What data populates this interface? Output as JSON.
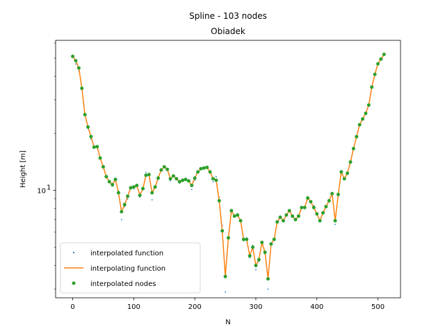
{
  "chart_data": {
    "type": "line",
    "title": "Spline - 103 nodes",
    "subtitle": "Obiadek",
    "xlabel": "N",
    "ylabel": "Height [m]",
    "xlim": [
      -28,
      537
    ],
    "ylim": [
      2.7,
      62
    ],
    "yscale": "log",
    "x_ticks": [
      0,
      100,
      200,
      300,
      400,
      500
    ],
    "y_major_ticks": [
      {
        "value": 10,
        "label": "10",
        "base": "10",
        "exp": "1"
      }
    ],
    "y_minor_ticks": [
      3,
      4,
      5,
      6,
      7,
      8,
      9,
      20,
      30,
      40,
      50,
      60
    ],
    "legend_position": "lower-left",
    "grid": false,
    "series": [
      {
        "name": "interpolated function",
        "kind": "dots",
        "color": "#1f77b4",
        "x": [
          0,
          5,
          10,
          15,
          20,
          25,
          30,
          35,
          40,
          45,
          50,
          55,
          60,
          65,
          70,
          75,
          80,
          85,
          90,
          95,
          100,
          105,
          110,
          115,
          120,
          125,
          130,
          135,
          140,
          145,
          150,
          155,
          160,
          165,
          170,
          175,
          180,
          185,
          190,
          195,
          200,
          205,
          210,
          215,
          220,
          225,
          230,
          235,
          240,
          245,
          250,
          255,
          260,
          265,
          270,
          275,
          280,
          285,
          290,
          295,
          300,
          305,
          310,
          315,
          320,
          325,
          330,
          335,
          340,
          345,
          350,
          355,
          360,
          365,
          370,
          375,
          380,
          385,
          390,
          395,
          400,
          405,
          410,
          415,
          420,
          425,
          430,
          435,
          440,
          445,
          450,
          455,
          460,
          465,
          470,
          475,
          480,
          485,
          490,
          495,
          500,
          505,
          510
        ],
        "y": [
          50.8,
          46.5,
          42.8,
          34.2,
          25.4,
          21.2,
          18.7,
          16.7,
          16.9,
          14.6,
          13.5,
          11.8,
          11.1,
          10.5,
          11.6,
          9.9,
          7.0,
          8.2,
          9.0,
          10.4,
          10.2,
          10.6,
          9.2,
          10.1,
          12.4,
          12.1,
          8.9,
          10.3,
          11.4,
          12.7,
          13.2,
          12.8,
          11.2,
          11.9,
          11.6,
          10.9,
          11.1,
          11.6,
          11.3,
          10.1,
          11.3,
          12.4,
          12.9,
          13.0,
          13.4,
          12.6,
          11.1,
          11.8,
          9.2,
          6.5,
          2.9,
          5.7,
          7.9,
          7.2,
          7.5,
          7.0,
          5.4,
          5.6,
          4.4,
          5.1,
          3.8,
          4.2,
          5.3,
          4.6,
          3.0,
          5.2,
          5.6,
          6.8,
          7.3,
          6.9,
          7.5,
          7.8,
          7.2,
          6.9,
          7.4,
          8.1,
          8.0,
          9.2,
          8.6,
          8.3,
          7.6,
          6.9,
          7.7,
          8.3,
          8.8,
          9.7,
          6.6,
          9.4,
          12.7,
          11.4,
          12.4,
          14.2,
          16.7,
          19.2,
          22.4,
          24.1,
          25.4,
          27.9,
          35.1,
          41.1,
          46.8,
          49.3,
          52.1
        ]
      },
      {
        "name": "interpolating function",
        "kind": "line",
        "color": "#ff7f0e",
        "x": [
          0,
          5,
          10,
          15,
          20,
          25,
          30,
          35,
          40,
          45,
          50,
          55,
          60,
          65,
          70,
          75,
          80,
          85,
          90,
          95,
          100,
          105,
          110,
          115,
          120,
          125,
          130,
          135,
          140,
          145,
          150,
          155,
          160,
          165,
          170,
          175,
          180,
          185,
          190,
          195,
          200,
          205,
          210,
          215,
          220,
          225,
          230,
          235,
          240,
          245,
          250,
          255,
          260,
          265,
          270,
          275,
          280,
          285,
          290,
          295,
          300,
          305,
          310,
          315,
          320,
          325,
          330,
          335,
          340,
          345,
          350,
          355,
          360,
          365,
          370,
          375,
          380,
          385,
          390,
          395,
          400,
          405,
          410,
          415,
          420,
          425,
          430,
          435,
          440,
          445,
          450,
          455,
          460,
          465,
          470,
          475,
          480,
          485,
          490,
          495,
          500,
          505,
          510
        ],
        "y": [
          51.0,
          48.4,
          44.3,
          34.6,
          25.1,
          21.6,
          19.2,
          16.9,
          17.0,
          14.8,
          13.3,
          11.8,
          11.1,
          10.7,
          11.4,
          9.7,
          7.7,
          8.4,
          9.3,
          10.3,
          10.4,
          10.6,
          9.4,
          10.2,
          12.0,
          12.1,
          9.7,
          10.4,
          11.6,
          12.8,
          13.3,
          12.9,
          11.5,
          11.9,
          11.5,
          11.1,
          11.3,
          11.4,
          11.2,
          10.6,
          11.6,
          12.5,
          13.0,
          13.1,
          13.2,
          12.5,
          11.5,
          11.3,
          8.8,
          6.1,
          3.5,
          5.6,
          7.8,
          7.3,
          7.4,
          6.9,
          5.5,
          5.5,
          4.5,
          5.0,
          4.0,
          4.3,
          5.3,
          4.7,
          3.4,
          5.2,
          5.5,
          6.8,
          7.2,
          6.9,
          7.4,
          7.8,
          7.3,
          7.0,
          7.3,
          8.1,
          8.1,
          9.1,
          8.7,
          8.1,
          7.5,
          6.9,
          7.6,
          8.2,
          8.8,
          9.6,
          6.9,
          9.5,
          12.5,
          11.5,
          12.3,
          14.1,
          16.6,
          19.2,
          22.2,
          23.8,
          25.5,
          28.2,
          35.1,
          41.0,
          46.6,
          49.4,
          52.3
        ]
      },
      {
        "name": "interpolated nodes",
        "kind": "markers",
        "color": "#2ca02c",
        "x": [
          0,
          5,
          10,
          15,
          20,
          25,
          30,
          35,
          40,
          45,
          50,
          55,
          60,
          65,
          70,
          75,
          80,
          85,
          90,
          95,
          100,
          105,
          110,
          115,
          120,
          125,
          130,
          135,
          140,
          145,
          150,
          155,
          160,
          165,
          170,
          175,
          180,
          185,
          190,
          195,
          200,
          205,
          210,
          215,
          220,
          225,
          230,
          235,
          240,
          245,
          250,
          255,
          260,
          265,
          270,
          275,
          280,
          285,
          290,
          295,
          300,
          305,
          310,
          315,
          320,
          325,
          330,
          335,
          340,
          345,
          350,
          355,
          360,
          365,
          370,
          375,
          380,
          385,
          390,
          395,
          400,
          405,
          410,
          415,
          420,
          425,
          430,
          435,
          440,
          445,
          450,
          455,
          460,
          465,
          470,
          475,
          480,
          485,
          490,
          495,
          500,
          505,
          510
        ],
        "y": [
          51.0,
          48.4,
          44.3,
          34.6,
          25.1,
          21.6,
          19.2,
          16.9,
          17.0,
          14.8,
          13.3,
          11.8,
          11.1,
          10.7,
          11.4,
          9.7,
          7.7,
          8.4,
          9.3,
          10.3,
          10.4,
          10.6,
          9.4,
          10.2,
          12.0,
          12.1,
          9.7,
          10.4,
          11.6,
          12.8,
          13.3,
          12.9,
          11.5,
          11.9,
          11.5,
          11.1,
          11.3,
          11.4,
          11.2,
          10.6,
          11.6,
          12.5,
          13.0,
          13.1,
          13.2,
          12.5,
          11.5,
          11.3,
          8.8,
          6.1,
          3.5,
          5.6,
          7.8,
          7.3,
          7.4,
          6.9,
          5.5,
          5.5,
          4.5,
          5.0,
          4.0,
          4.3,
          5.3,
          4.7,
          3.4,
          5.2,
          5.5,
          6.8,
          7.2,
          6.9,
          7.4,
          7.8,
          7.3,
          7.0,
          7.3,
          8.1,
          8.1,
          9.1,
          8.7,
          8.1,
          7.5,
          6.9,
          7.6,
          8.2,
          8.8,
          9.6,
          6.9,
          9.5,
          12.5,
          11.5,
          12.3,
          14.1,
          16.6,
          19.2,
          22.2,
          23.8,
          25.5,
          28.2,
          35.1,
          41.0,
          46.6,
          49.4,
          52.3
        ]
      }
    ]
  }
}
